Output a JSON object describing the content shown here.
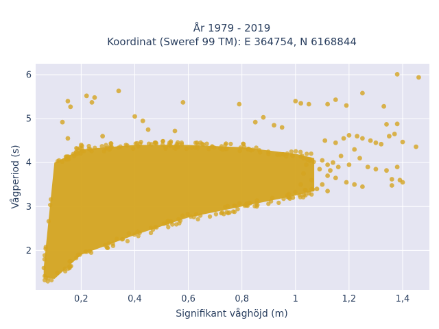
{
  "chart_data": {
    "type": "scatter",
    "title_lines": [
      "År 1979 - 2019",
      "Koordinat (Sweref 99 TM): E 364754, N 6168844"
    ],
    "xlabel": "Signifikant våghöjd (m)",
    "ylabel": "Vågperiod (s)",
    "xlim": [
      0.03,
      1.5
    ],
    "ylim": [
      1.1,
      6.25
    ],
    "x_ticks": [
      0.2,
      0.4,
      0.6,
      0.8,
      1.0,
      1.2,
      1.4
    ],
    "x_tick_labels": [
      "0,2",
      "0,4",
      "0,6",
      "0,8",
      "1",
      "1,2",
      "1,4"
    ],
    "y_ticks": [
      2,
      3,
      4,
      5,
      6
    ],
    "y_tick_labels": [
      "2",
      "3",
      "4",
      "5",
      "6"
    ],
    "grid": true,
    "legend": "none",
    "marker_color": "#d4a420",
    "background_color": "#e5e5f2",
    "density_band": {
      "description": "dense cloud of points",
      "x_range": [
        0.06,
        1.07
      ],
      "lower_edge": [
        [
          0.06,
          1.4
        ],
        [
          0.1,
          1.35
        ],
        [
          0.2,
          1.9
        ],
        [
          0.4,
          2.35
        ],
        [
          0.6,
          2.75
        ],
        [
          0.8,
          3.0
        ],
        [
          1.0,
          3.25
        ],
        [
          1.07,
          3.35
        ]
      ],
      "upper_edge": [
        [
          0.06,
          1.6
        ],
        [
          0.1,
          4.0
        ],
        [
          0.2,
          4.3
        ],
        [
          0.4,
          4.4
        ],
        [
          0.6,
          4.4
        ],
        [
          0.8,
          4.35
        ],
        [
          1.0,
          4.2
        ],
        [
          1.07,
          4.1
        ]
      ]
    },
    "series": [
      {
        "values": [
          [
            0.15,
            5.4
          ],
          [
            0.16,
            5.27
          ],
          [
            0.22,
            5.52
          ],
          [
            0.24,
            5.37
          ],
          [
            0.25,
            5.48
          ],
          [
            0.34,
            5.63
          ],
          [
            0.13,
            4.92
          ],
          [
            0.15,
            4.55
          ],
          [
            0.2,
            4.4
          ],
          [
            0.28,
            4.6
          ],
          [
            0.4,
            5.05
          ],
          [
            0.43,
            4.95
          ],
          [
            0.45,
            4.75
          ],
          [
            0.55,
            4.72
          ],
          [
            0.58,
            5.37
          ],
          [
            0.79,
            5.33
          ],
          [
            0.85,
            4.92
          ],
          [
            0.88,
            5.03
          ],
          [
            0.92,
            4.85
          ],
          [
            0.95,
            4.8
          ],
          [
            1.0,
            5.4
          ],
          [
            1.02,
            5.35
          ],
          [
            1.05,
            5.33
          ],
          [
            1.12,
            5.33
          ],
          [
            1.15,
            5.43
          ],
          [
            1.19,
            5.3
          ],
          [
            1.25,
            5.58
          ],
          [
            1.33,
            5.28
          ],
          [
            1.38,
            6.01
          ],
          [
            1.46,
            5.94
          ],
          [
            1.34,
            4.87
          ],
          [
            1.38,
            4.88
          ],
          [
            1.37,
            4.65
          ],
          [
            1.35,
            4.6
          ],
          [
            1.4,
            4.47
          ],
          [
            1.45,
            4.36
          ],
          [
            1.11,
            4.5
          ],
          [
            1.15,
            4.45
          ],
          [
            1.18,
            4.55
          ],
          [
            1.2,
            4.62
          ],
          [
            1.23,
            4.6
          ],
          [
            1.25,
            4.55
          ],
          [
            1.28,
            4.5
          ],
          [
            1.3,
            4.45
          ],
          [
            1.32,
            4.42
          ],
          [
            1.22,
            4.3
          ],
          [
            1.17,
            4.15
          ],
          [
            1.24,
            4.1
          ],
          [
            1.1,
            4.05
          ],
          [
            1.12,
            3.95
          ],
          [
            1.14,
            4.0
          ],
          [
            1.16,
            3.9
          ],
          [
            1.2,
            3.95
          ],
          [
            1.27,
            3.9
          ],
          [
            1.3,
            3.85
          ],
          [
            1.12,
            3.7
          ],
          [
            1.15,
            3.65
          ],
          [
            1.19,
            3.55
          ],
          [
            1.22,
            3.5
          ],
          [
            1.25,
            3.45
          ],
          [
            1.34,
            3.82
          ],
          [
            1.36,
            3.62
          ],
          [
            1.39,
            3.6
          ],
          [
            1.38,
            3.9
          ],
          [
            1.4,
            3.55
          ],
          [
            1.36,
            3.48
          ],
          [
            1.1,
            3.5
          ],
          [
            1.08,
            3.4
          ],
          [
            1.12,
            3.35
          ],
          [
            1.05,
            3.3
          ],
          [
            1.02,
            3.5
          ],
          [
            1.06,
            3.6
          ],
          [
            0.99,
            3.2
          ],
          [
            0.97,
            3.25
          ],
          [
            1.03,
            3.75
          ],
          [
            1.04,
            3.95
          ],
          [
            1.09,
            3.85
          ],
          [
            1.13,
            3.82
          ]
        ]
      }
    ]
  }
}
